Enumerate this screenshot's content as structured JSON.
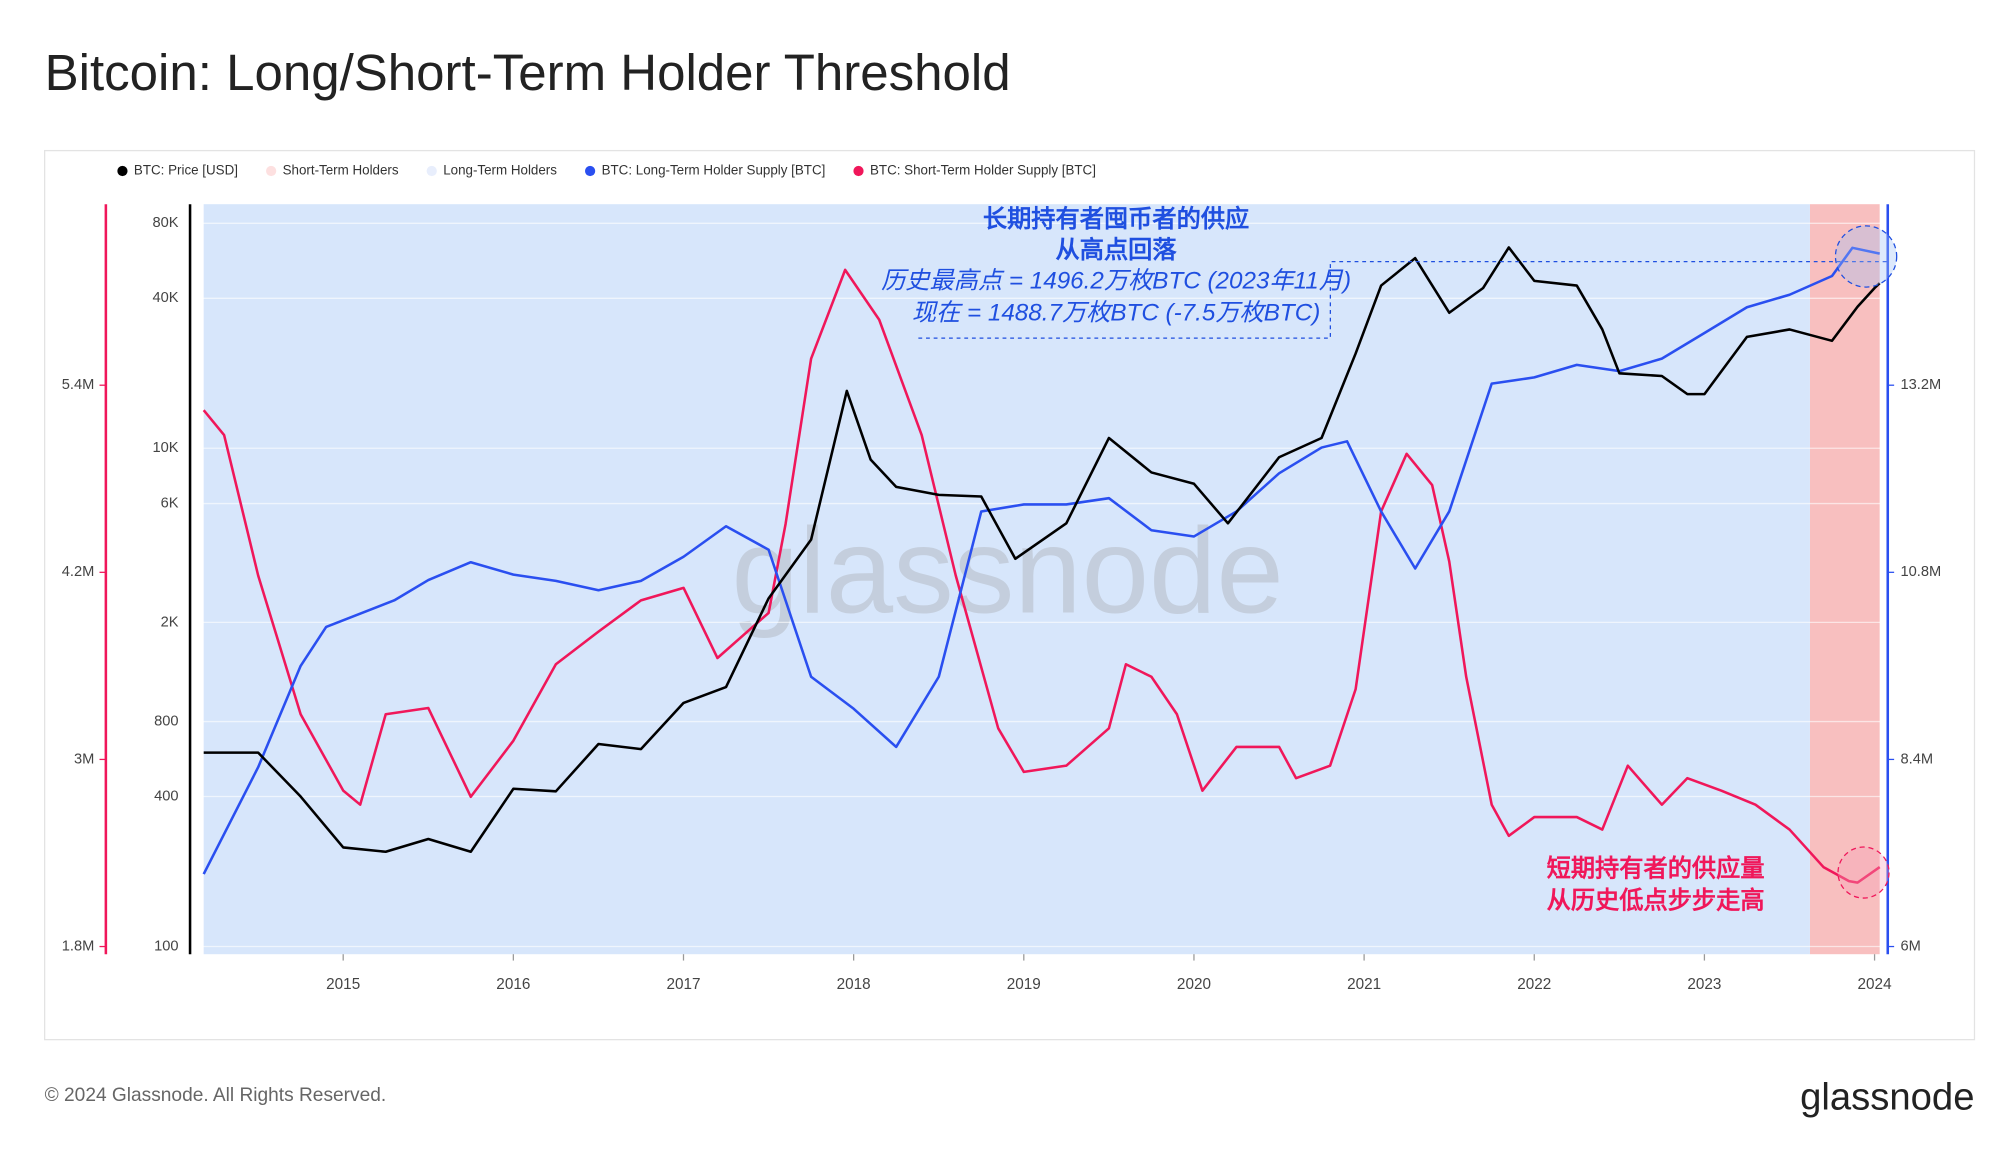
{
  "chart_data": {
    "type": "line",
    "title": "Bitcoin: Long/Short-Term Holder Threshold",
    "footer": "© 2024 Glassnode. All Rights Reserved.",
    "brand": "glassnode",
    "watermark": "glassnode",
    "xlim": [
      2014.1,
      2024.1
    ],
    "xticks": [
      2015,
      2016,
      2017,
      2018,
      2019,
      2020,
      2021,
      2022,
      2023,
      2024
    ],
    "ylog": true,
    "ylim": [
      100,
      90000
    ],
    "yticks": [
      100,
      400,
      800,
      {
        "value": 2000,
        "label": "2K"
      },
      {
        "value": 6000,
        "label": "6K"
      },
      {
        "value": 10000,
        "label": "10K"
      },
      {
        "value": 40000,
        "label": "40K"
      },
      {
        "value": 80000,
        "label": "80K"
      }
    ],
    "y2lim": [
      6000000,
      15440000
    ],
    "y2ticks": [
      {
        "value": 6000000,
        "label": "6M"
      },
      {
        "value": 8400000,
        "label": "8.4M"
      },
      {
        "value": 10800000,
        "label": "10.8M"
      },
      {
        "value": 13200000,
        "label": "13.2M"
      }
    ],
    "y3lim": [
      1800000,
      6520000
    ],
    "y3ticks": [
      {
        "value": 1800000,
        "label": "1.8M"
      },
      {
        "value": 3000000,
        "label": "3M"
      },
      {
        "value": 4200000,
        "label": "4.2M"
      },
      {
        "value": 5400000,
        "label": "5.4M"
      }
    ],
    "grid": true,
    "regions": [
      {
        "name": "Short-Term Holders",
        "color": "#f7b8b8",
        "x": [
          2023.62,
          2024.03
        ]
      },
      {
        "name": "Long-Term Holders",
        "color": "#d3e3fb",
        "x": [
          2014.18,
          2023.62
        ]
      }
    ],
    "series": [
      {
        "name": "BTC: Price [USD]",
        "color": "#000000",
        "axis": "y",
        "x": [
          2014.18,
          2014.5,
          2014.75,
          2015.0,
          2015.25,
          2015.5,
          2015.75,
          2016.0,
          2016.25,
          2016.5,
          2016.75,
          2017.0,
          2017.25,
          2017.5,
          2017.75,
          2017.96,
          2018.1,
          2018.25,
          2018.5,
          2018.75,
          2018.95,
          2019.25,
          2019.5,
          2019.75,
          2020.0,
          2020.2,
          2020.5,
          2020.75,
          2020.95,
          2021.1,
          2021.3,
          2021.5,
          2021.7,
          2021.85,
          2022.0,
          2022.25,
          2022.4,
          2022.5,
          2022.75,
          2022.9,
          2023.0,
          2023.25,
          2023.5,
          2023.75,
          2023.9,
          2024.0,
          2024.03
        ],
        "values": [
          600,
          600,
          400,
          250,
          240,
          270,
          240,
          430,
          420,
          650,
          620,
          950,
          1100,
          2500,
          4300,
          17000,
          9000,
          7000,
          6500,
          6400,
          3600,
          5000,
          11000,
          8000,
          7200,
          5000,
          9200,
          11000,
          24000,
          45000,
          58000,
          35000,
          44000,
          64000,
          47000,
          45000,
          30000,
          20000,
          19500,
          16500,
          16500,
          28000,
          30000,
          27000,
          37000,
          44000,
          46000
        ]
      },
      {
        "name": "BTC: Long-Term Holder Supply [BTC]",
        "color": "#2a4ff0",
        "axis": "y2",
        "x": [
          2014.18,
          2014.5,
          2014.75,
          2014.9,
          2015.3,
          2015.5,
          2015.75,
          2016.0,
          2016.25,
          2016.5,
          2016.75,
          2017.0,
          2017.25,
          2017.5,
          2017.75,
          2018.0,
          2018.25,
          2018.5,
          2018.75,
          2019.0,
          2019.25,
          2019.5,
          2019.75,
          2020.0,
          2020.25,
          2020.5,
          2020.75,
          2020.9,
          2021.1,
          2021.3,
          2021.5,
          2021.75,
          2022.0,
          2022.25,
          2022.5,
          2022.75,
          2023.0,
          2023.25,
          2023.5,
          2023.75,
          2023.87,
          2024.03
        ],
        "values": [
          6930000,
          8300000,
          9600000,
          10100000,
          10440000,
          10700000,
          10930000,
          10770000,
          10690000,
          10570000,
          10690000,
          11000000,
          11390000,
          11090000,
          9460000,
          9050000,
          8560000,
          9460000,
          11580000,
          11670000,
          11670000,
          11750000,
          11340000,
          11260000,
          11580000,
          12070000,
          12400000,
          12480000,
          11580000,
          10850000,
          11580000,
          13220000,
          13300000,
          13460000,
          13380000,
          13540000,
          13870000,
          14200000,
          14360000,
          14600000,
          14962000,
          14887000
        ]
      },
      {
        "name": "BTC: Short-Term Holder Supply [BTC]",
        "color": "#f0175a",
        "axis": "y3",
        "x": [
          2014.18,
          2014.3,
          2014.5,
          2014.75,
          2015.0,
          2015.1,
          2015.25,
          2015.5,
          2015.75,
          2016.0,
          2016.25,
          2016.5,
          2016.75,
          2017.0,
          2017.2,
          2017.5,
          2017.6,
          2017.75,
          2017.95,
          2018.15,
          2018.4,
          2018.6,
          2018.85,
          2019.0,
          2019.25,
          2019.5,
          2019.6,
          2019.75,
          2019.9,
          2020.05,
          2020.25,
          2020.5,
          2020.6,
          2020.8,
          2020.95,
          2021.1,
          2021.25,
          2021.4,
          2021.5,
          2021.6,
          2021.75,
          2021.85,
          2022.0,
          2022.25,
          2022.4,
          2022.55,
          2022.75,
          2022.9,
          2023.1,
          2023.3,
          2023.5,
          2023.7,
          2023.85,
          2023.9,
          2024.03
        ],
        "values": [
          5240000,
          5080000,
          4180000,
          3290000,
          2800000,
          2710000,
          3290000,
          3330000,
          2760000,
          3120000,
          3610000,
          3820000,
          4020000,
          4100000,
          3650000,
          3940000,
          4510000,
          5570000,
          6140000,
          5820000,
          5080000,
          4180000,
          3200000,
          2920000,
          2960000,
          3200000,
          3610000,
          3530000,
          3290000,
          2800000,
          3080000,
          3080000,
          2880000,
          2960000,
          3450000,
          4590000,
          4960000,
          4760000,
          4270000,
          3530000,
          2710000,
          2510000,
          2630000,
          2630000,
          2550000,
          2960000,
          2710000,
          2880000,
          2800000,
          2710000,
          2550000,
          2310000,
          2220000,
          2210000,
          2310000
        ]
      }
    ],
    "annotations": [
      {
        "color": "#1f4fe0",
        "lines": [
          "长期持有者囤币者的供应",
          "从高点回落",
          "历史最高点 = 1496.2万枚BTC (2023年11月)",
          "现在 = 1488.7万枚BTC (-7.5万枚BTC)"
        ]
      },
      {
        "color": "#f0175a",
        "lines": [
          "短期持有者的供应量",
          "从历史低点步步走高"
        ]
      }
    ]
  }
}
